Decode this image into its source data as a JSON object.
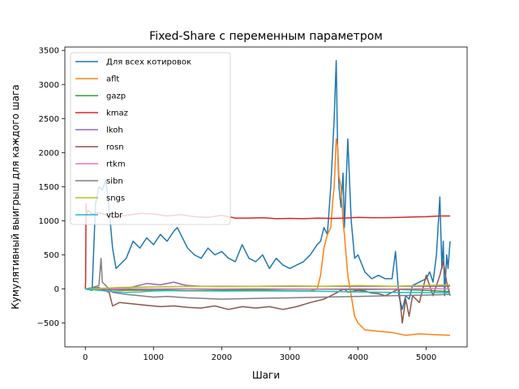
{
  "chart_data": {
    "type": "line",
    "title": "Fixed-Share с переменным параметром",
    "xlabel": "Шаги",
    "ylabel": "Кумулятивный выигрыш для каждого шага",
    "xlim": [
      -300,
      5600
    ],
    "ylim": [
      -850,
      3550
    ],
    "xticks": [
      0,
      1000,
      2000,
      3000,
      4000,
      5000
    ],
    "yticks": [
      -500,
      0,
      500,
      1000,
      1500,
      2000,
      2500,
      3000,
      3500
    ],
    "grid": false,
    "legend_position": "top-left",
    "series": [
      {
        "name": "Для всех котировок",
        "color": "#1f77b4",
        "x": [
          0,
          100,
          150,
          200,
          250,
          300,
          330,
          360,
          400,
          450,
          500,
          600,
          700,
          800,
          900,
          1000,
          1100,
          1200,
          1300,
          1350,
          1400,
          1450,
          1500,
          1600,
          1700,
          1800,
          1900,
          2000,
          2100,
          2200,
          2300,
          2400,
          2500,
          2600,
          2700,
          2800,
          2900,
          3000,
          3100,
          3200,
          3300,
          3400,
          3450,
          3500,
          3550,
          3600,
          3650,
          3680,
          3700,
          3720,
          3750,
          3780,
          3800,
          3850,
          3900,
          3950,
          4000,
          4100,
          4200,
          4300,
          4400,
          4500,
          4550,
          4600,
          4650,
          4700,
          4750,
          4800,
          4900,
          5000,
          5050,
          5100,
          5150,
          5200,
          5230,
          5250,
          5270,
          5300,
          5320,
          5350
        ],
        "y": [
          0,
          -20,
          1250,
          1500,
          1450,
          1600,
          1350,
          1050,
          600,
          300,
          350,
          450,
          700,
          600,
          750,
          650,
          800,
          700,
          850,
          900,
          800,
          700,
          600,
          500,
          450,
          600,
          500,
          550,
          450,
          400,
          650,
          450,
          400,
          500,
          300,
          450,
          350,
          300,
          350,
          400,
          500,
          650,
          700,
          900,
          800,
          1500,
          2500,
          3350,
          2100,
          1500,
          1200,
          1700,
          900,
          2200,
          1000,
          450,
          500,
          250,
          150,
          200,
          150,
          150,
          550,
          -100,
          -300,
          -100,
          -150,
          50,
          100,
          150,
          250,
          100,
          500,
          1350,
          300,
          700,
          -100,
          500,
          300,
          700
        ]
      },
      {
        "name": "aflt",
        "color": "#ff7f0e",
        "x": [
          0,
          500,
          1000,
          1500,
          2000,
          2500,
          3000,
          3300,
          3400,
          3450,
          3500,
          3550,
          3600,
          3630,
          3650,
          3680,
          3700,
          3720,
          3750,
          3780,
          3800,
          3850,
          3900,
          3950,
          4000,
          4100,
          4300,
          4500,
          4700,
          4900,
          5100,
          5350
        ],
        "y": [
          0,
          -20,
          -20,
          -30,
          -30,
          -30,
          -30,
          -30,
          0,
          200,
          600,
          800,
          900,
          1300,
          1500,
          2200,
          2100,
          1650,
          1500,
          1000,
          800,
          200,
          -100,
          -400,
          -500,
          -600,
          -620,
          -640,
          -680,
          -660,
          -670,
          -680
        ]
      },
      {
        "name": "gazp",
        "color": "#2ca02c",
        "x": [
          0,
          500,
          1000,
          1500,
          2000,
          2500,
          3000,
          3500,
          4000,
          4500,
          5000,
          5350
        ],
        "y": [
          0,
          -15,
          -10,
          -20,
          -15,
          -10,
          -5,
          -5,
          -10,
          -5,
          -20,
          -40
        ]
      },
      {
        "name": "kmaz",
        "color": "#d62728",
        "x": [
          0,
          5,
          10,
          20,
          40,
          100,
          200,
          400,
          600,
          800,
          1000,
          1200,
          1400,
          1600,
          1800,
          2000,
          2200,
          2400,
          2600,
          2800,
          3000,
          3200,
          3400,
          3600,
          3800,
          4000,
          4200,
          4400,
          4600,
          4800,
          5000,
          5200,
          5350
        ],
        "y": [
          0,
          120,
          1250,
          1100,
          1150,
          1100,
          1120,
          1050,
          1080,
          1110,
          1100,
          1070,
          1090,
          1060,
          1050,
          1080,
          1040,
          1040,
          1045,
          1030,
          1035,
          1030,
          1040,
          1035,
          1040,
          1050,
          1045,
          1045,
          1050,
          1055,
          1060,
          1070,
          1070
        ]
      },
      {
        "name": "lkoh",
        "color": "#9467bd",
        "x": [
          0,
          300,
          500,
          700,
          900,
          1100,
          1300,
          1400,
          1500,
          1700,
          2000,
          2500,
          3000,
          3500,
          4000,
          4500,
          5000,
          5350
        ],
        "y": [
          0,
          -10,
          -10,
          30,
          80,
          60,
          100,
          70,
          50,
          40,
          40,
          40,
          40,
          40,
          40,
          40,
          40,
          40
        ]
      },
      {
        "name": "rosn",
        "color": "#8c564b",
        "x": [
          0,
          200,
          300,
          350,
          400,
          500,
          700,
          900,
          1100,
          1300,
          1500,
          1700,
          1900,
          2100,
          2300,
          2500,
          2700,
          2900,
          3100,
          3300,
          3500,
          3600,
          3700,
          3750,
          3800,
          3850,
          3900,
          4000,
          4100,
          4200,
          4300,
          4400,
          4500,
          4600,
          4650,
          4700,
          4750,
          4800,
          4900,
          5000,
          5100,
          5200,
          5250,
          5300,
          5350
        ],
        "y": [
          0,
          20,
          -30,
          -50,
          -250,
          -200,
          -220,
          -240,
          -260,
          -250,
          -270,
          -280,
          -250,
          -300,
          -260,
          -280,
          -260,
          -300,
          -260,
          -200,
          -150,
          -100,
          -50,
          -20,
          0,
          -50,
          -40,
          -20,
          -30,
          -60,
          -70,
          -100,
          -50,
          0,
          -500,
          -150,
          -400,
          -100,
          -200,
          200,
          -100,
          200,
          400,
          100,
          -100
        ]
      },
      {
        "name": "rtkm",
        "color": "#e377c2",
        "x": [
          0,
          500,
          1000,
          1500,
          2000,
          2500,
          3000,
          3500,
          4000,
          4500,
          5000,
          5350
        ],
        "y": [
          0,
          5,
          0,
          5,
          0,
          5,
          0,
          0,
          5,
          0,
          5,
          0
        ]
      },
      {
        "name": "sibn",
        "color": "#7f7f7f",
        "x": [
          0,
          100,
          200,
          230,
          250,
          300,
          400,
          600,
          800,
          1000,
          1200,
          1500,
          2000,
          2500,
          3000,
          3500,
          4000,
          4500,
          5000,
          5350
        ],
        "y": [
          0,
          20,
          50,
          450,
          100,
          50,
          -50,
          -80,
          -100,
          -120,
          -110,
          -130,
          -150,
          -140,
          -130,
          -120,
          -110,
          -100,
          -90,
          -80
        ]
      },
      {
        "name": "sngs",
        "color": "#bcbd22",
        "x": [
          0,
          500,
          1000,
          1500,
          2000,
          2500,
          3000,
          3500,
          4000,
          4500,
          5000,
          5350
        ],
        "y": [
          0,
          20,
          30,
          40,
          35,
          40,
          45,
          40,
          50,
          40,
          50,
          60
        ]
      },
      {
        "name": "vtbr",
        "color": "#17becf",
        "x": [
          0,
          200,
          400,
          600,
          800,
          1000,
          1500,
          2000,
          2500,
          3000,
          3500,
          3800,
          4000,
          4500,
          5000,
          5350
        ],
        "y": [
          0,
          -20,
          -40,
          -50,
          -45,
          -30,
          -20,
          -30,
          -25,
          -30,
          -35,
          -40,
          -45,
          -50,
          -55,
          -55
        ]
      }
    ]
  }
}
